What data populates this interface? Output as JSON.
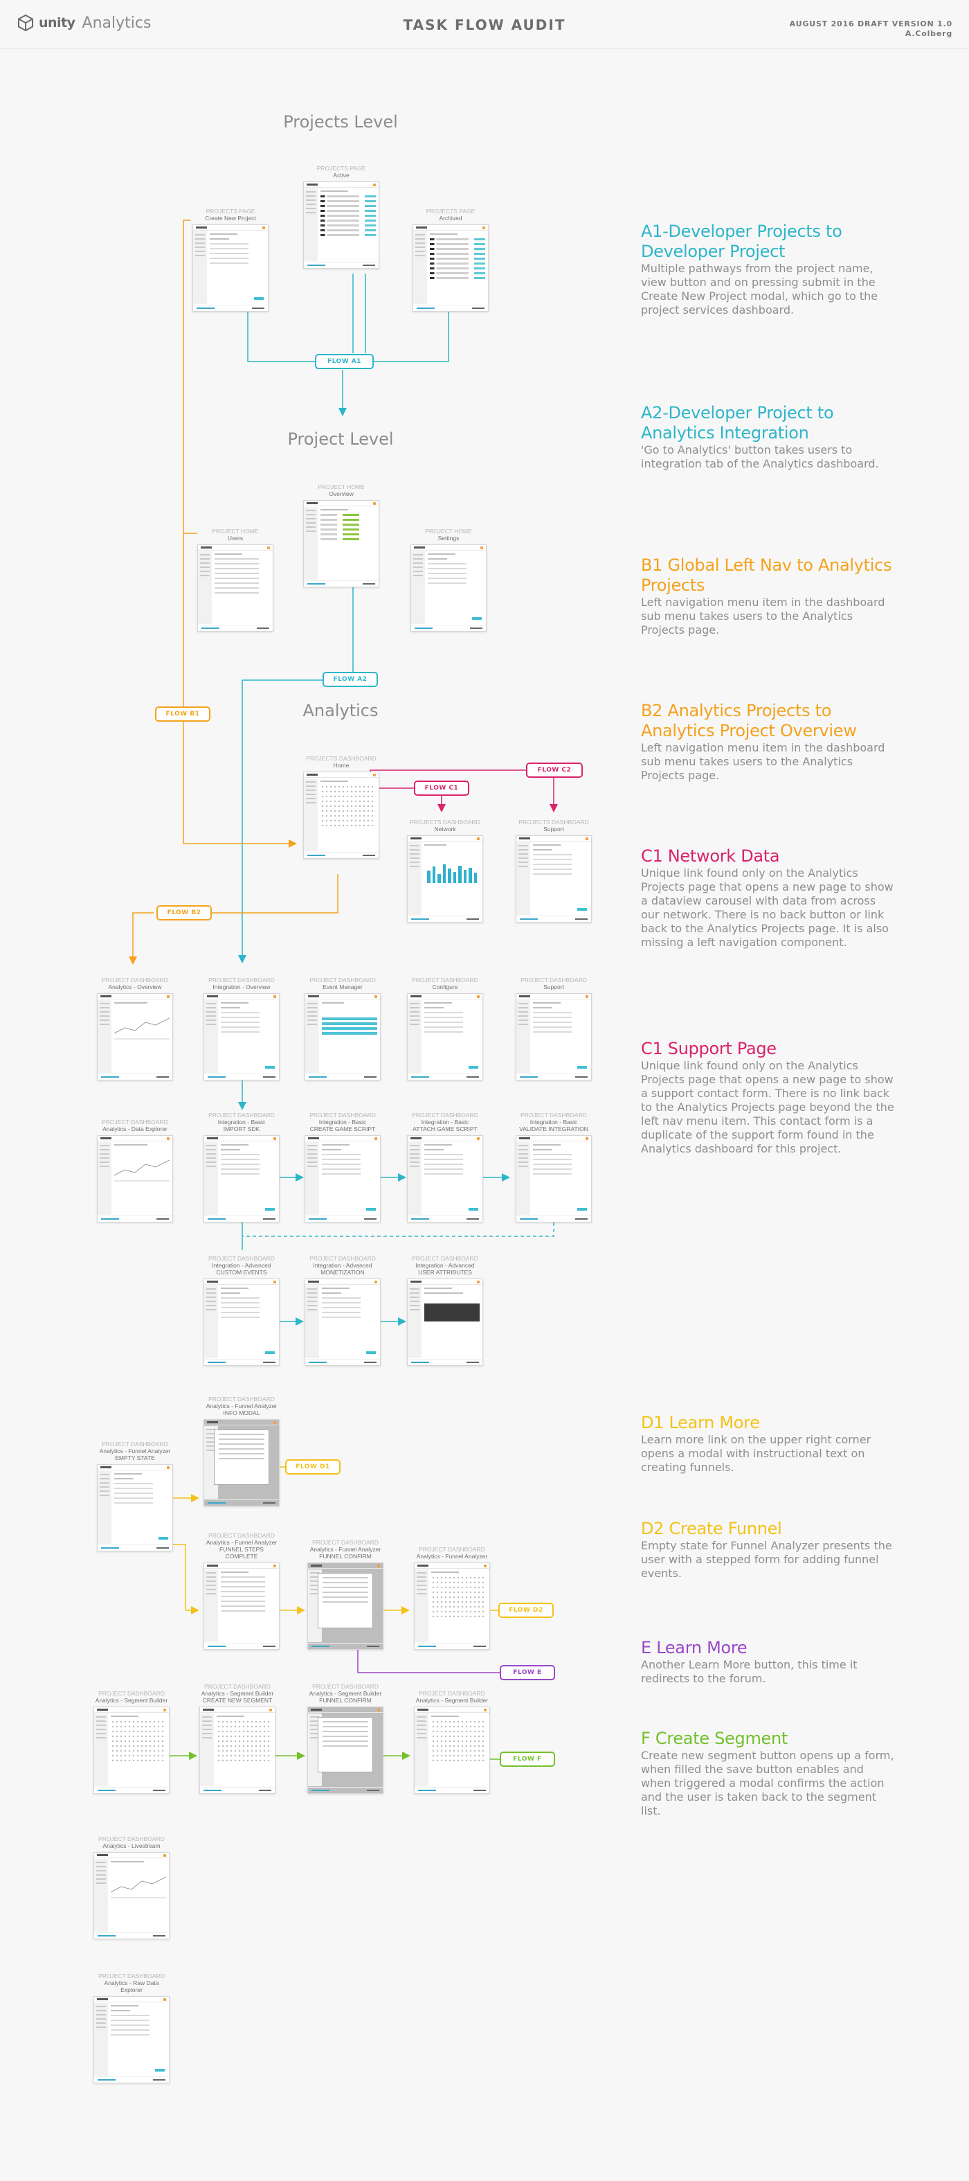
{
  "header": {
    "brand_unity": "unity",
    "brand_analytics": "Analytics",
    "title": "TASK FLOW AUDIT",
    "meta_line1": "AUGUST 2016 DRAFT VERSION 1.0",
    "meta_line2": "A.Colberg"
  },
  "sections": {
    "projects_level": "Projects Level",
    "project_level": "Project Level",
    "analytics": "Analytics"
  },
  "colors": {
    "teal": "#2db6c9",
    "orange": "#f4a21c",
    "magenta": "#d9236a",
    "yellow": "#f2c218",
    "purple": "#9a47c7",
    "green": "#72c02c"
  },
  "screens": [
    {
      "id": "s1",
      "c1": "PROJECTS PAGE",
      "c2": "Active",
      "c3": ""
    },
    {
      "id": "s2",
      "c1": "PROJECTS PAGE",
      "c2": "Create New Project",
      "c3": ""
    },
    {
      "id": "s3",
      "c1": "PROJECTS PAGE",
      "c2": "Archived",
      "c3": ""
    },
    {
      "id": "s4",
      "c1": "PROJECT HOME",
      "c2": "Overview",
      "c3": ""
    },
    {
      "id": "s5",
      "c1": "PROJECT HOME",
      "c2": "Users",
      "c3": ""
    },
    {
      "id": "s6",
      "c1": "PROJECT HOME",
      "c2": "Settings",
      "c3": ""
    },
    {
      "id": "s7",
      "c1": "PROJECTS DASHBOARD",
      "c2": "Home",
      "c3": ""
    },
    {
      "id": "s8",
      "c1": "PROJECTS DASHBOARD",
      "c2": "Network",
      "c3": ""
    },
    {
      "id": "s9",
      "c1": "PROJECTS DASHBOARD",
      "c2": "Support",
      "c3": ""
    },
    {
      "id": "s10",
      "c1": "PROJECT DASHBOARD",
      "c2": "Analytics - Overview",
      "c3": ""
    },
    {
      "id": "s11",
      "c1": "PROJECT DASHBOARD",
      "c2": "Integration - Overview",
      "c3": ""
    },
    {
      "id": "s12",
      "c1": "PROJECT DASHBOARD",
      "c2": "Event Manager",
      "c3": ""
    },
    {
      "id": "s13",
      "c1": "PROJECT DASHBOARD",
      "c2": "Configure",
      "c3": ""
    },
    {
      "id": "s14",
      "c1": "PROJECT DASHBOARD",
      "c2": "Support",
      "c3": ""
    },
    {
      "id": "s15",
      "c1": "PROJECT DASHBOARD",
      "c2": "Analytics - Data Explorer",
      "c3": ""
    },
    {
      "id": "s16",
      "c1": "PROJECT DASHBOARD",
      "c2": "Integration - Basic",
      "c3": "IMPORT SDK"
    },
    {
      "id": "s17",
      "c1": "PROJECT DASHBOARD",
      "c2": "Integration - Basic",
      "c3": "CREATE GAME SCRIPT"
    },
    {
      "id": "s18",
      "c1": "PROJECT DASHBOARD",
      "c2": "Integration - Basic",
      "c3": "ATTACH GAME SCRIPT"
    },
    {
      "id": "s19",
      "c1": "PROJECT DASHBOARD",
      "c2": "Integration - Basic",
      "c3": "VALIDATE INTEGRATION"
    },
    {
      "id": "s20",
      "c1": "PROJECT DASHBOARD",
      "c2": "Integration - Advanced",
      "c3": "CUSTOM EVENTS"
    },
    {
      "id": "s21",
      "c1": "PROJECT DASHBOARD",
      "c2": "Integration - Advanced",
      "c3": "MONETIZATION"
    },
    {
      "id": "s22",
      "c1": "PROJECT DASHBOARD",
      "c2": "Integration - Advanced",
      "c3": "USER ATTRIBUTES"
    },
    {
      "id": "s23",
      "c1": "PROJECT DASHBOARD",
      "c2": "Analytics - Funnel Analyzer",
      "c3": "INFO MODAL"
    },
    {
      "id": "s24",
      "c1": "PROJECT DASHBOARD",
      "c2": "Analytics - Funnel Analyzer",
      "c3": "EMPTY STATE"
    },
    {
      "id": "s25",
      "c1": "PROJECT DASHBOARD",
      "c2": "Analytics - Funnel Analyzer",
      "c3": "FUNNEL STEPS COMPLETE"
    },
    {
      "id": "s26",
      "c1": "PROJECT DASHBOARD",
      "c2": "Analytics - Funnel Analyzer",
      "c3": "FUNNEL CONFIRM"
    },
    {
      "id": "s27",
      "c1": "PROJECT DASHBOARD",
      "c2": "Analytics - Funnel Analyzer",
      "c3": ""
    },
    {
      "id": "s28",
      "c1": "PROJECT DASHBOARD",
      "c2": "Analytics - Segment Builder",
      "c3": ""
    },
    {
      "id": "s29",
      "c1": "PROJECT DASHBOARD",
      "c2": "Analytics - Segment Builder",
      "c3": "CREATE NEW SEGMENT"
    },
    {
      "id": "s30",
      "c1": "PROJECT DASHBOARD",
      "c2": "Analytics - Segment Builder",
      "c3": "FUNNEL CONFIRM"
    },
    {
      "id": "s31",
      "c1": "PROJECT DASHBOARD",
      "c2": "Analytics - Segment Builder",
      "c3": ""
    },
    {
      "id": "s32",
      "c1": "PROJECT DASHBOARD",
      "c2": "Analytics - Livestream",
      "c3": ""
    },
    {
      "id": "s33",
      "c1": "PROJECT DASHBOARD",
      "c2": "Analytics - Raw Data Explorer",
      "c3": ""
    }
  ],
  "flows": {
    "a1": "FLOW A1",
    "a2": "FLOW A2",
    "b1": "FLOW B1",
    "b2": "FLOW B2",
    "c1": "FLOW C1",
    "c2": "FLOW C2",
    "d1": "FLOW D1",
    "d2": "FLOW D2",
    "e": "FLOW E",
    "f": "FLOW F"
  },
  "descriptions": [
    {
      "title": "A1-Developer Projects to Developer Project",
      "body": "Multiple pathways from the project name, view button and on pressing submit in the Create New Project modal, which go to the project services dashboard.",
      "color": "#2db6c9"
    },
    {
      "title": "A2-Developer Project to Analytics Integration",
      "body": "'Go to Analytics' button takes users to integration tab of the Analytics dashboard.",
      "color": "#2db6c9"
    },
    {
      "title": "B1 Global Left Nav to Analytics Projects",
      "body": "Left navigation menu item in the dashboard sub menu takes users to the Analytics Projects page.",
      "color": "#f4a21c"
    },
    {
      "title": "B2 Analytics Projects to Analytics Project Overview",
      "body": "Left navigation menu item in the dashboard sub menu takes users to the Analytics Projects page.",
      "color": "#f4a21c"
    },
    {
      "title": "C1 Network Data",
      "body": "Unique link found only on the Analytics Projects page that opens a new page to show a dataview carousel with data from across our network. There is no back button or link back to the Analytics Projects page. It is also missing a left navigation component.",
      "color": "#d9236a"
    },
    {
      "title": "C1 Support Page",
      "body": "Unique link found only on the Analytics Projects page that opens a new page to show a support contact form. There is no link back to the Analytics Projects page beyond the the left nav menu item. This contact form is a duplicate of the support form found in the Analytics dashboard for this project.",
      "color": "#d9236a"
    },
    {
      "title": "D1 Learn More",
      "body": "Learn more link on the upper right corner opens a modal with instructional text on creating funnels.",
      "color": "#f2c218"
    },
    {
      "title": "D2 Create Funnel",
      "body": "Empty state for Funnel Analyzer presents the user with a stepped form for adding funnel events.",
      "color": "#f2c218"
    },
    {
      "title": "E Learn More",
      "body": "Another Learn More button, this time it redirects to the forum.",
      "color": "#9a47c7"
    },
    {
      "title": "F Create Segment",
      "body": "Create new segment button opens up a form, when filled the save button enables and when triggered a modal confirms the action and the user is taken back to the segment list.",
      "color": "#72c02c"
    }
  ]
}
